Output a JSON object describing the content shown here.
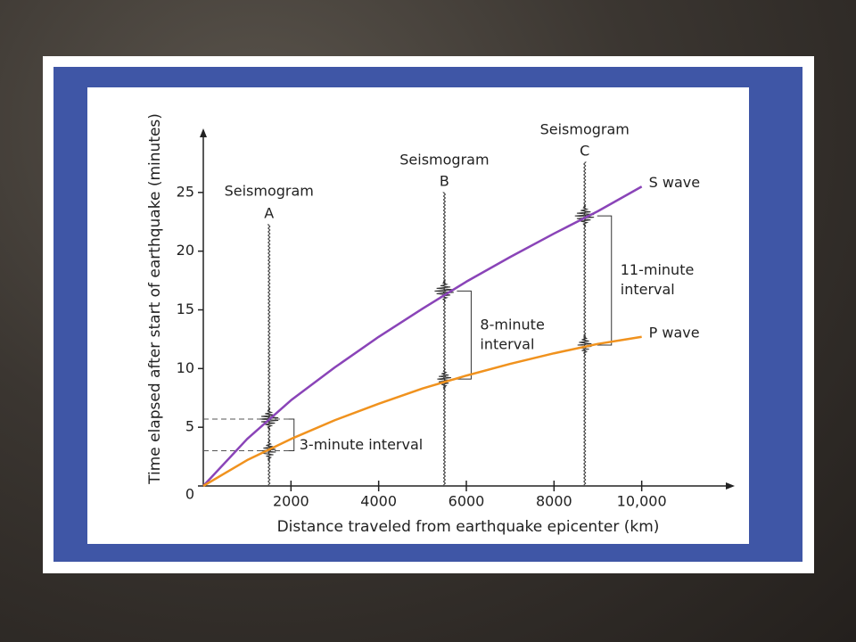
{
  "chart_data": {
    "type": "line",
    "x_label": "Distance traveled from earthquake epicenter (km)",
    "y_label": "Time elapsed after start of earthquake (minutes)",
    "x": [
      0,
      1000,
      2000,
      3000,
      4000,
      5000,
      6000,
      7000,
      8000,
      9000,
      10000
    ],
    "series": [
      {
        "name": "S wave",
        "color": "#8a44b8",
        "values": [
          0,
          4,
          7.3,
          10.1,
          12.7,
          15.1,
          17.4,
          19.5,
          21.5,
          23.4,
          25.5
        ]
      },
      {
        "name": "P wave",
        "color": "#f0921e",
        "values": [
          0,
          2.2,
          4,
          5.6,
          7,
          8.3,
          9.4,
          10.4,
          11.3,
          12.1,
          12.7
        ]
      }
    ],
    "xlim": [
      0,
      12000
    ],
    "ylim": [
      0,
      30
    ],
    "xticks": [
      2000,
      4000,
      6000,
      8000,
      {
        "value": 10000,
        "label": "10,000"
      }
    ],
    "yticks": [
      0,
      5,
      10,
      15,
      20,
      25
    ],
    "seismograms": [
      {
        "label": "Seismogram",
        "letter": "A",
        "x": 1500,
        "p_arrival": 3,
        "s_arrival": 5.7,
        "interval_label": [
          "3-minute interval"
        ]
      },
      {
        "label": "Seismogram",
        "letter": "B",
        "x": 5500,
        "p_arrival": 9.1,
        "s_arrival": 16.6,
        "interval_label": [
          "8-minute",
          "interval"
        ]
      },
      {
        "label": "Seismogram",
        "letter": "C",
        "x": 8700,
        "p_arrival": 12,
        "s_arrival": 23,
        "interval_label": [
          "11-minute",
          "interval"
        ]
      }
    ]
  }
}
